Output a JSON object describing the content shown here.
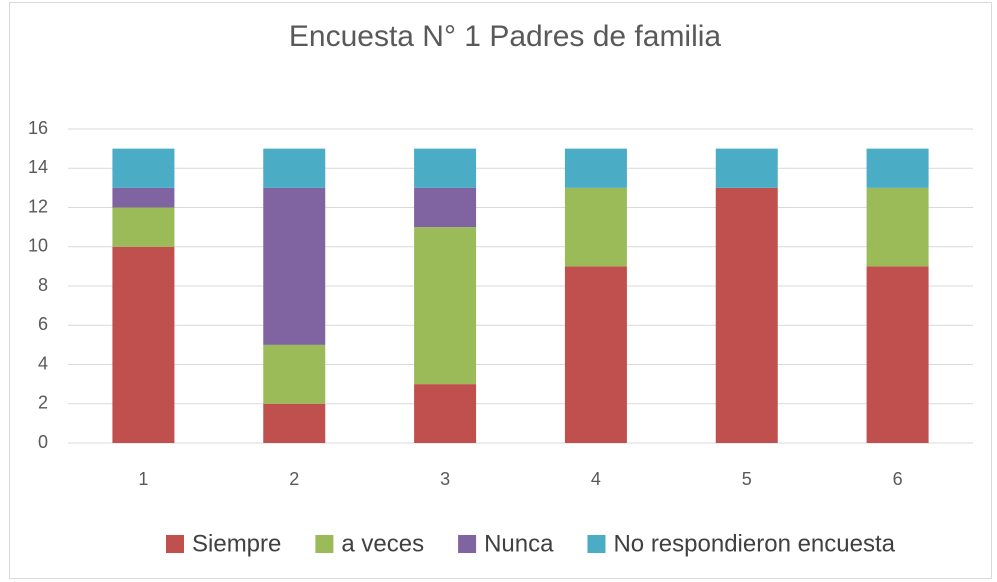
{
  "chart_data": {
    "type": "stacked_bar",
    "title": "Encuesta N° 1 Padres de familia",
    "categories": [
      "1",
      "2",
      "3",
      "4",
      "5",
      "6"
    ],
    "series": [
      {
        "name": "Siempre",
        "color": "#c0504d",
        "values": [
          10,
          2,
          3,
          9,
          13,
          9
        ]
      },
      {
        "name": "a veces",
        "color": "#9bbb59",
        "values": [
          2,
          3,
          8,
          4,
          0,
          4
        ]
      },
      {
        "name": "Nunca",
        "color": "#8064a2",
        "values": [
          1,
          8,
          2,
          0,
          0,
          0
        ]
      },
      {
        "name": "No respondieron encuesta",
        "color": "#4bacc6",
        "values": [
          2,
          2,
          2,
          2,
          2,
          2
        ]
      }
    ],
    "ylim": [
      0,
      16
    ],
    "yticks": [
      0,
      2,
      4,
      6,
      8,
      10,
      12,
      14,
      16
    ],
    "grid": true,
    "legend": "bottom"
  }
}
